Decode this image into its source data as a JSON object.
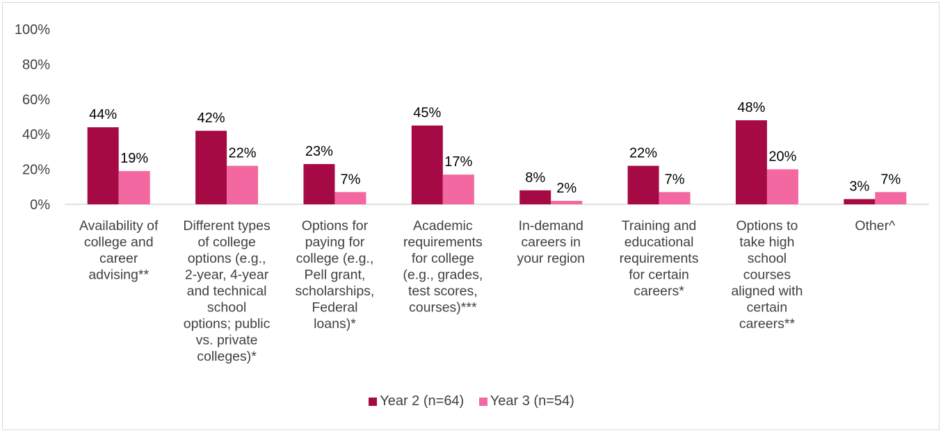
{
  "chart_data": {
    "type": "bar",
    "categories": [
      [
        "Availability of",
        "college and",
        "career",
        "advising**"
      ],
      [
        "Different types",
        "of college",
        "options (e.g.,",
        "2-year, 4-year",
        "and technical",
        "school",
        "options; public",
        "vs. private",
        "colleges)*"
      ],
      [
        "Options for",
        "paying for",
        "college (e.g.,",
        "Pell grant,",
        "scholarships,",
        "Federal",
        "loans)*"
      ],
      [
        "Academic",
        "requirements",
        "for college",
        "(e.g., grades,",
        "test scores,",
        "courses)***"
      ],
      [
        "In-demand",
        "careers in",
        "your region"
      ],
      [
        "Training and",
        "educational",
        "requirements",
        "for certain",
        "careers*"
      ],
      [
        "Options to",
        "take high",
        "school",
        "courses",
        "aligned with",
        "certain",
        "careers**"
      ],
      [
        "Other^"
      ]
    ],
    "series": [
      {
        "name": "Year 2 (n=64)",
        "color": "#a50a45",
        "values": [
          44,
          42,
          23,
          45,
          8,
          22,
          48,
          3
        ],
        "labels": [
          "44%",
          "42%",
          "23%",
          "45%",
          "8%",
          "22%",
          "48%",
          "3%"
        ]
      },
      {
        "name": "Year 3 (n=54)",
        "color": "#f468a1",
        "values": [
          19,
          22,
          7,
          17,
          2,
          7,
          20,
          7
        ],
        "labels": [
          "19%",
          "22%",
          "7%",
          "17%",
          "2%",
          "7%",
          "20%",
          "7%"
        ]
      }
    ],
    "ylim": [
      0,
      100
    ],
    "yticks": [
      0,
      20,
      40,
      60,
      80,
      100
    ],
    "ytick_labels": [
      "0%",
      "20%",
      "40%",
      "60%",
      "80%",
      "100%"
    ],
    "grid": false,
    "legend_position": "bottom"
  },
  "legend": {
    "items": [
      "Year 2 (n=64)",
      "Year 3 (n=54)"
    ]
  }
}
